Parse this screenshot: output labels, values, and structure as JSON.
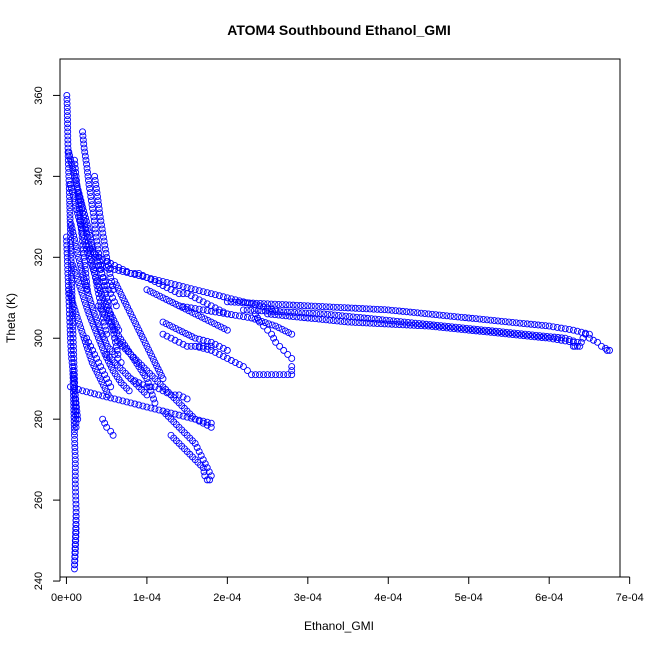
{
  "chart_data": {
    "type": "scatter",
    "title": "ATOM4 Southbound Ethanol_GMI",
    "xlabel": "Ethanol_GMI",
    "ylabel": "Theta (K)",
    "xlim": [
      -8e-06,
      0.000688
    ],
    "ylim": [
      241,
      369
    ],
    "xticks": [
      0,
      0.0001,
      0.0002,
      0.0003,
      0.0004,
      0.0005,
      0.0006,
      0.0007
    ],
    "xtick_labels": [
      "0e+00",
      "1e-04",
      "2e-04",
      "3e-04",
      "4e-04",
      "5e-04",
      "6e-04",
      "7e-04"
    ],
    "yticks": [
      240,
      260,
      280,
      300,
      320,
      340,
      360
    ],
    "ytick_labels": [
      "240",
      "260",
      "280",
      "300",
      "320",
      "340",
      "360"
    ],
    "grid": false,
    "marker": "open-circle",
    "color": "#0000ff",
    "series": [
      {
        "x": [
          5e-07,
          1e-06,
          1.5e-06,
          2e-06,
          3e-06,
          4e-06,
          5e-06,
          6e-06,
          7e-06,
          8e-06,
          9e-06,
          1e-05,
          1.1e-05,
          1.2e-05
        ],
        "y": [
          360,
          357,
          352,
          346,
          340,
          334,
          326,
          318,
          310,
          302,
          296,
          290,
          284,
          278
        ]
      },
      {
        "x": [
          8e-06,
          9e-06,
          1e-05,
          1.1e-05,
          1.1e-05,
          1.2e-05,
          1.2e-05,
          1.1e-05,
          1e-05,
          1e-05,
          1.1e-05,
          1.2e-05
        ],
        "y": [
          292,
          284,
          276,
          270,
          264,
          258,
          252,
          247,
          243,
          244,
          250,
          256
        ]
      },
      {
        "x": [
          3e-06,
          1e-05,
          1.8e-05,
          2.6e-05,
          3.3e-05,
          4e-05,
          4.8e-05,
          5.5e-05,
          6.2e-05
        ],
        "y": [
          346,
          340,
          334,
          328,
          322,
          318,
          314,
          311,
          308
        ]
      },
      {
        "x": [
          5e-06,
          1.5e-05,
          2.5e-05,
          3.5e-05,
          4.5e-05,
          5.5e-05,
          6.5e-05
        ],
        "y": [
          338,
          330,
          322,
          316,
          310,
          306,
          302
        ]
      },
      {
        "x": [
          6e-06,
          1.5e-05,
          2.4e-05,
          3.3e-05,
          4.2e-05,
          5.1e-05,
          6e-05,
          6.8e-05
        ],
        "y": [
          328,
          320,
          313,
          307,
          302,
          298,
          296,
          294
        ]
      },
      {
        "x": [
          8e-06,
          1.8e-05,
          2.8e-05,
          3.8e-05,
          4.8e-05,
          5.8e-05,
          6.8e-05,
          7.8e-05
        ],
        "y": [
          318,
          312,
          306,
          301,
          296,
          292,
          289,
          287
        ]
      },
      {
        "x": [
          3e-06,
          1.2e-05,
          2.2e-05,
          3.2e-05,
          4.2e-05,
          5.2e-05
        ],
        "y": [
          312,
          306,
          300,
          294,
          290,
          286
        ]
      },
      {
        "x": [
          2e-05,
          2.2e-05,
          2.5e-05,
          2.8e-05,
          3.1e-05,
          3.4e-05,
          3.7e-05,
          4e-05,
          4.4e-05,
          4.8e-05,
          5.2e-05,
          5.6e-05,
          6e-05,
          6.4e-05
        ],
        "y": [
          351,
          347,
          343,
          338,
          334,
          330,
          325,
          321,
          316,
          312,
          308,
          304,
          300,
          296
        ]
      },
      {
        "x": [
          3.5e-05,
          3.8e-05,
          4.2e-05,
          4.6e-05,
          5e-05,
          5.4e-05,
          5.8e-05
        ],
        "y": [
          340,
          336,
          330,
          325,
          320,
          316,
          312
        ]
      },
      {
        "x": [
          6e-05,
          7e-05,
          8e-05,
          9e-05,
          0.0001,
          0.00011,
          0.00012
        ],
        "y": [
          314,
          310,
          306,
          302,
          298,
          294,
          290
        ]
      },
      {
        "x": [
          4e-05,
          5e-05,
          6e-05,
          7e-05,
          8e-05,
          9e-05,
          0.0001,
          0.000105,
          0.00011
        ],
        "y": [
          308,
          305,
          302,
          299,
          296,
          293,
          290,
          287,
          284
        ]
      },
      {
        "x": [
          5e-06,
          2e-05,
          4e-05,
          6e-05,
          8e-05,
          0.0001,
          0.00012,
          0.00014,
          0.00016,
          0.00018
        ],
        "y": [
          288,
          287,
          286,
          285,
          284,
          283,
          282,
          281,
          280,
          279
        ]
      },
      {
        "x": [
          0.00012,
          0.00013,
          0.00014,
          0.00015,
          0.00016,
          0.00017,
          0.00018
        ],
        "y": [
          301,
          300,
          299,
          298,
          298,
          298,
          298
        ]
      },
      {
        "x": [
          8e-05,
          9e-05,
          0.0001,
          0.00011,
          0.00012,
          0.00013,
          0.00014,
          0.00015
        ],
        "y": [
          290,
          289,
          288,
          288,
          287,
          286,
          286,
          285
        ]
      },
      {
        "x": [
          5e-05,
          6e-05,
          7e-05,
          8e-05,
          9e-05,
          0.0001
        ],
        "y": [
          296,
          294,
          292,
          290,
          288,
          286
        ]
      },
      {
        "x": [
          4.5e-05,
          5e-05,
          5.5e-05,
          5.8e-05
        ],
        "y": [
          280,
          278,
          277,
          276
        ]
      },
      {
        "x": [
          3e-05,
          4e-05,
          5e-05,
          6e-05,
          7e-05,
          8e-05,
          9e-05,
          0.0001,
          0.00011,
          0.00012,
          0.00013,
          0.00014,
          0.00015,
          0.00016,
          0.00017,
          0.00018,
          0.00019,
          0.0002
        ],
        "y": [
          322,
          320,
          319,
          318,
          317,
          316,
          316,
          315,
          314,
          313,
          312,
          311,
          311,
          310,
          309,
          308,
          307,
          306
        ]
      },
      {
        "x": [
          4e-05,
          6e-05,
          8e-05,
          0.0001,
          0.00012,
          0.00014,
          0.00016,
          0.00018,
          0.0002,
          0.00022,
          0.00024,
          0.00026
        ],
        "y": [
          318,
          317,
          316,
          315,
          314,
          313,
          312,
          311,
          310,
          309,
          308,
          307
        ]
      },
      {
        "x": [
          0.0001,
          0.00012,
          0.00014,
          0.00016,
          0.00018,
          0.0002
        ],
        "y": [
          312,
          310,
          308,
          306,
          304,
          302
        ]
      },
      {
        "x": [
          0.00012,
          0.00014,
          0.00016,
          0.00018,
          0.00019,
          0.0002
        ],
        "y": [
          304,
          302,
          300,
          299,
          298,
          297
        ]
      },
      {
        "x": [
          0.00014,
          0.00017,
          0.0002,
          0.00023,
          0.00026,
          0.00028
        ],
        "y": [
          308,
          307,
          306,
          305,
          303,
          301
        ]
      },
      {
        "x": [
          0.00016,
          0.00018,
          0.00019,
          0.0002,
          0.00021,
          0.00022,
          0.000225,
          0.00023,
          0.00024,
          0.00025,
          0.00026,
          0.00027,
          0.00028,
          0.00028
        ],
        "y": [
          298,
          297,
          296,
          295,
          294,
          293,
          292,
          291,
          291,
          291,
          291,
          291,
          291,
          293
        ]
      },
      {
        "x": [
          0.000235,
          0.00024,
          0.000245,
          0.00025,
          0.000255,
          0.00026,
          0.000265,
          0.00027,
          0.000275,
          0.00028
        ],
        "y": [
          306,
          304,
          303,
          302,
          301,
          299,
          298,
          297,
          296,
          295
        ]
      },
      {
        "x": [
          6e-05,
          7e-05,
          8e-05,
          9e-05,
          0.0001,
          0.00011,
          0.00012,
          0.00013,
          0.00014,
          0.00015,
          0.00016,
          0.00017,
          0.00018
        ],
        "y": [
          300,
          298,
          296,
          294,
          292,
          290,
          288,
          286,
          284,
          282,
          280,
          279,
          278
        ]
      },
      {
        "x": [
          0.00012,
          0.00013,
          0.00014,
          0.00015,
          0.00016,
          0.000165,
          0.00017,
          0.000175,
          0.00018
        ],
        "y": [
          282,
          280,
          278,
          276,
          274,
          272,
          270,
          268,
          266
        ]
      },
      {
        "x": [
          0.00013,
          0.00014,
          0.00015,
          0.00016,
          0.00017,
          0.000172,
          0.000175,
          0.000178
        ],
        "y": [
          276,
          274,
          272,
          270,
          268,
          266,
          265,
          265
        ]
      },
      {
        "x": [
          0.0002,
          0.00025,
          0.0003,
          0.00035,
          0.0004,
          0.00045,
          0.0005,
          0.00055,
          0.0006,
          0.00063,
          0.00065
        ],
        "y": [
          309,
          308.5,
          308,
          307.5,
          307,
          306,
          305,
          304,
          303,
          302,
          301
        ]
      },
      {
        "x": [
          0.00022,
          0.00027,
          0.00032,
          0.00037,
          0.00042,
          0.00047,
          0.00052,
          0.00057,
          0.00062,
          0.000635
        ],
        "y": [
          307,
          306.5,
          306,
          305,
          304,
          303,
          302,
          301,
          300,
          299
        ]
      },
      {
        "x": [
          0.00025,
          0.0003,
          0.00035,
          0.0004,
          0.00045,
          0.0005,
          0.00055,
          0.0006,
          0.00063
        ],
        "y": [
          306,
          305,
          304,
          303.5,
          303,
          302,
          301,
          300,
          299
        ]
      },
      {
        "x": [
          0.00063,
          0.000632,
          0.000635,
          0.000638,
          0.00064,
          0.000642,
          0.000645
        ],
        "y": [
          298,
          298,
          298,
          298,
          299,
          300,
          301
        ]
      },
      {
        "x": [
          0.00065,
          0.00066,
          0.000665,
          0.00067,
          0.000672,
          0.000675
        ],
        "y": [
          300,
          299,
          298,
          297.5,
          297,
          297
        ]
      },
      {
        "x": [
          0.0,
          1e-06,
          2e-06,
          3e-06,
          4e-06,
          5e-06,
          6e-06,
          8e-06,
          1e-05,
          1.2e-05,
          1.4e-05
        ],
        "y": [
          325,
          320,
          315,
          310,
          305,
          300,
          296,
          292,
          288,
          284,
          280
        ]
      },
      {
        "x": [
          1e-05,
          1.2e-05,
          1.4e-05,
          1.6e-05,
          1.8e-05,
          2e-05,
          2.2e-05,
          2.4e-05,
          2.6e-05
        ],
        "y": [
          344,
          340,
          336,
          332,
          328,
          324,
          320,
          316,
          312
        ]
      },
      {
        "x": [
          1.5e-05,
          2e-05,
          2.5e-05,
          3e-05,
          3.5e-05,
          4e-05,
          4.5e-05,
          5e-05
        ],
        "y": [
          336,
          331,
          326,
          321,
          316,
          311,
          306,
          301
        ]
      },
      {
        "x": [
          2.5e-05,
          3e-05,
          3.5e-05,
          4e-05,
          4.5e-05,
          5e-05,
          5.5e-05
        ],
        "y": [
          300,
          298,
          296,
          294,
          292,
          290,
          288
        ]
      }
    ]
  }
}
